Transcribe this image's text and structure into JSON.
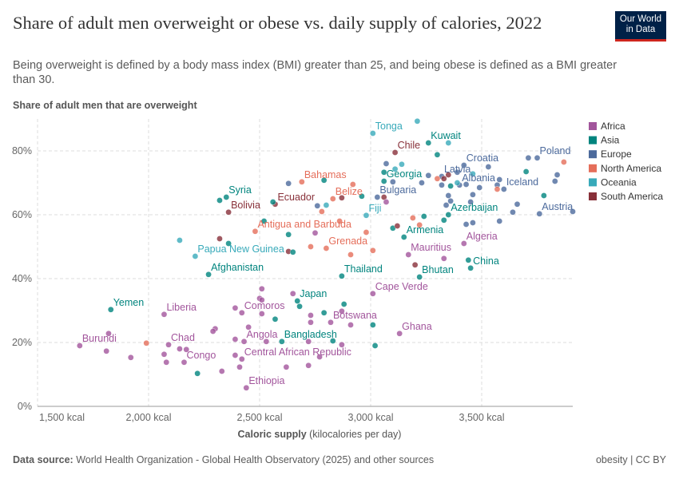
{
  "header": {
    "title": "Share of adult men overweight or obese vs. daily supply of calories, 2022",
    "subtitle": "Being overweight is defined by a body mass index (BMI) greater than 25, and being obese is defined as a BMI greater than 30.",
    "logo": "Our World in Data"
  },
  "footer": {
    "source_label": "Data source:",
    "source": "World Health Organization - Global Health Observatory (2025) and other sources",
    "right": "obesity | CC BY"
  },
  "chart_data": {
    "type": "scatter",
    "title": "Share of adult men overweight or obese vs. daily supply of calories, 2022",
    "ylabel": "Share of adult men that are overweight",
    "xlabel_bold": "Caloric supply",
    "xlabel_rest": " (kilocalories per day)",
    "xlim": [
      1500,
      3910
    ],
    "ylim": [
      0,
      90
    ],
    "xticks": [
      {
        "v": 1500,
        "label": "1,500 kcal"
      },
      {
        "v": 2000,
        "label": "2,000 kcal"
      },
      {
        "v": 2500,
        "label": "2,500 kcal"
      },
      {
        "v": 3000,
        "label": "3,000 kcal"
      },
      {
        "v": 3500,
        "label": "3,500 kcal"
      }
    ],
    "yticks": [
      {
        "v": 0,
        "label": "0%"
      },
      {
        "v": 20,
        "label": "20%"
      },
      {
        "v": 40,
        "label": "40%"
      },
      {
        "v": 60,
        "label": "60%"
      },
      {
        "v": 80,
        "label": "80%"
      }
    ],
    "grid": true,
    "legend_position": "right",
    "legend": [
      {
        "name": "Africa",
        "color": "#a2559c"
      },
      {
        "name": "Asia",
        "color": "#00847e"
      },
      {
        "name": "Europe",
        "color": "#4c6a9c"
      },
      {
        "name": "North America",
        "color": "#e56e5a"
      },
      {
        "name": "Oceania",
        "color": "#38aaba"
      },
      {
        "name": "South America",
        "color": "#883039"
      }
    ],
    "points": [
      {
        "name": "Burundi",
        "region": "Africa",
        "kcal": 1690,
        "pct": 19
      },
      {
        "name": "Yemen",
        "region": "Asia",
        "kcal": 1830,
        "pct": 30.3
      },
      {
        "name": "Liberia",
        "region": "Africa",
        "kcal": 2070,
        "pct": 28.8
      },
      {
        "name": "Chad",
        "region": "Africa",
        "kcal": 2090,
        "pct": 19.3
      },
      {
        "name": "Congo",
        "region": "Africa",
        "kcal": 2160,
        "pct": 13.8
      },
      {
        "name": "Comoros",
        "region": "Africa",
        "kcal": 2420,
        "pct": 29.3
      },
      {
        "name": "Angola",
        "region": "Africa",
        "kcal": 2430,
        "pct": 20.3
      },
      {
        "name": "Central African Republic",
        "region": "Africa",
        "kcal": 2420,
        "pct": 14.8
      },
      {
        "name": "Ethiopia",
        "region": "Africa",
        "kcal": 2440,
        "pct": 5.8
      },
      {
        "name": "Bangladesh",
        "region": "Asia",
        "kcal": 2600,
        "pct": 20.3
      },
      {
        "name": "Japan",
        "region": "Asia",
        "kcal": 2670,
        "pct": 33
      },
      {
        "name": "Botswana",
        "region": "Africa",
        "kcal": 2820,
        "pct": 26.3
      },
      {
        "name": "Ghana",
        "region": "Africa",
        "kcal": 3130,
        "pct": 22.8
      },
      {
        "name": "Cape Verde",
        "region": "Africa",
        "kcal": 3010,
        "pct": 35.3
      },
      {
        "name": "Thailand",
        "region": "Asia",
        "kcal": 2870,
        "pct": 40.8
      },
      {
        "name": "Bhutan",
        "region": "Asia",
        "kcal": 3220,
        "pct": 40.5
      },
      {
        "name": "China",
        "region": "Asia",
        "kcal": 3450,
        "pct": 43.3
      },
      {
        "name": "Mauritius",
        "region": "Africa",
        "kcal": 3170,
        "pct": 47.5
      },
      {
        "name": "Algeria",
        "region": "Africa",
        "kcal": 3420,
        "pct": 51
      },
      {
        "name": "Armenia",
        "region": "Asia",
        "kcal": 3150,
        "pct": 53
      },
      {
        "name": "Azerbaijan",
        "region": "Asia",
        "kcal": 3350,
        "pct": 60
      },
      {
        "name": "Austria",
        "region": "Europe",
        "kcal": 3760,
        "pct": 60.3
      },
      {
        "name": "Iceland",
        "region": "Europe",
        "kcal": 3600,
        "pct": 68
      },
      {
        "name": "Albania",
        "region": "Europe",
        "kcal": 3400,
        "pct": 69.3
      },
      {
        "name": "Latvia",
        "region": "Europe",
        "kcal": 3320,
        "pct": 72
      },
      {
        "name": "Croatia",
        "region": "Europe",
        "kcal": 3420,
        "pct": 75.5
      },
      {
        "name": "Poland",
        "region": "Europe",
        "kcal": 3750,
        "pct": 77.8
      },
      {
        "name": "Kuwait",
        "region": "Asia",
        "kcal": 3260,
        "pct": 82.5
      },
      {
        "name": "Tonga",
        "region": "Oceania",
        "kcal": 3010,
        "pct": 85.5
      },
      {
        "name": "Chile",
        "region": "South America",
        "kcal": 3110,
        "pct": 79.5
      },
      {
        "name": "Georgia",
        "region": "Asia",
        "kcal": 3060,
        "pct": 70.5
      },
      {
        "name": "Bulgaria",
        "region": "Europe",
        "kcal": 3030,
        "pct": 65.5
      },
      {
        "name": "Fiji",
        "region": "Oceania",
        "kcal": 2980,
        "pct": 59.8
      },
      {
        "name": "Belize",
        "region": "North America",
        "kcal": 2830,
        "pct": 65
      },
      {
        "name": "Bahamas",
        "region": "North America",
        "kcal": 2690,
        "pct": 70.3
      },
      {
        "name": "Ecuador",
        "region": "South America",
        "kcal": 2570,
        "pct": 63.3
      },
      {
        "name": "Bolivia",
        "region": "South America",
        "kcal": 2360,
        "pct": 60.8
      },
      {
        "name": "Syria",
        "region": "Asia",
        "kcal": 2350,
        "pct": 65.5
      },
      {
        "name": "Antigua and Barbuda",
        "region": "North America",
        "kcal": 2480,
        "pct": 54.8
      },
      {
        "name": "Grenada",
        "region": "North America",
        "kcal": 2800,
        "pct": 49.5
      },
      {
        "name": "Papua New Guinea",
        "region": "Oceania",
        "kcal": 2210,
        "pct": 47
      },
      {
        "name": "Afghanistan",
        "region": "Asia",
        "kcal": 2270,
        "pct": 41.3
      },
      {
        "name": "",
        "region": "Oceania",
        "kcal": 3210,
        "pct": 89.3
      },
      {
        "name": "",
        "region": "Oceania",
        "kcal": 3350,
        "pct": 82.5
      },
      {
        "name": "",
        "region": "Asia",
        "kcal": 3300,
        "pct": 78.8
      },
      {
        "name": "",
        "region": "Europe",
        "kcal": 3070,
        "pct": 76
      },
      {
        "name": "",
        "region": "Oceania",
        "kcal": 3140,
        "pct": 75.8
      },
      {
        "name": "",
        "region": "Oceania",
        "kcal": 3110,
        "pct": 74.3
      },
      {
        "name": "",
        "region": "Asia",
        "kcal": 3060,
        "pct": 73.3
      },
      {
        "name": "",
        "region": "Europe",
        "kcal": 3100,
        "pct": 70.3
      },
      {
        "name": "",
        "region": "Europe",
        "kcal": 3230,
        "pct": 70
      },
      {
        "name": "",
        "region": "Europe",
        "kcal": 3260,
        "pct": 72.3
      },
      {
        "name": "",
        "region": "South America",
        "kcal": 3330,
        "pct": 71.3
      },
      {
        "name": "",
        "region": "South America",
        "kcal": 3350,
        "pct": 72.5
      },
      {
        "name": "",
        "region": "Europe",
        "kcal": 3390,
        "pct": 73.3
      },
      {
        "name": "",
        "region": "North America",
        "kcal": 3300,
        "pct": 71.3
      },
      {
        "name": "",
        "region": "Europe",
        "kcal": 3320,
        "pct": 69.3
      },
      {
        "name": "",
        "region": "Asia",
        "kcal": 3360,
        "pct": 69
      },
      {
        "name": "",
        "region": "Oceania",
        "kcal": 3390,
        "pct": 70
      },
      {
        "name": "",
        "region": "Europe",
        "kcal": 3430,
        "pct": 69.5
      },
      {
        "name": "",
        "region": "Europe",
        "kcal": 3530,
        "pct": 75
      },
      {
        "name": "",
        "region": "Oceania",
        "kcal": 3460,
        "pct": 72.8
      },
      {
        "name": "",
        "region": "Europe",
        "kcal": 3490,
        "pct": 68.5
      },
      {
        "name": "",
        "region": "Europe",
        "kcal": 3570,
        "pct": 69.3
      },
      {
        "name": "",
        "region": "North America",
        "kcal": 3570,
        "pct": 68
      },
      {
        "name": "",
        "region": "Europe",
        "kcal": 3580,
        "pct": 71
      },
      {
        "name": "",
        "region": "Asia",
        "kcal": 3700,
        "pct": 73.5
      },
      {
        "name": "",
        "region": "Europe",
        "kcal": 3710,
        "pct": 77.8
      },
      {
        "name": "",
        "region": "North America",
        "kcal": 3870,
        "pct": 76.5
      },
      {
        "name": "",
        "region": "Europe",
        "kcal": 3840,
        "pct": 72.5
      },
      {
        "name": "",
        "region": "Europe",
        "kcal": 3830,
        "pct": 70.5
      },
      {
        "name": "",
        "region": "Asia",
        "kcal": 3780,
        "pct": 66
      },
      {
        "name": "",
        "region": "Europe",
        "kcal": 3660,
        "pct": 63.3
      },
      {
        "name": "",
        "region": "Europe",
        "kcal": 3640,
        "pct": 60.8
      },
      {
        "name": "",
        "region": "Europe",
        "kcal": 3910,
        "pct": 61
      },
      {
        "name": "",
        "region": "Europe",
        "kcal": 3580,
        "pct": 58
      },
      {
        "name": "",
        "region": "Europe",
        "kcal": 3460,
        "pct": 57.5
      },
      {
        "name": "",
        "region": "Europe",
        "kcal": 3430,
        "pct": 57
      },
      {
        "name": "",
        "region": "Europe",
        "kcal": 3460,
        "pct": 66.3
      },
      {
        "name": "",
        "region": "Europe",
        "kcal": 3450,
        "pct": 64
      },
      {
        "name": "",
        "region": "Europe",
        "kcal": 3350,
        "pct": 66
      },
      {
        "name": "",
        "region": "Europe",
        "kcal": 3360,
        "pct": 64.3
      },
      {
        "name": "",
        "region": "Europe",
        "kcal": 3340,
        "pct": 63
      },
      {
        "name": "",
        "region": "Asia",
        "kcal": 3330,
        "pct": 58.3
      },
      {
        "name": "",
        "region": "Asia",
        "kcal": 3240,
        "pct": 59.5
      },
      {
        "name": "",
        "region": "North America",
        "kcal": 3190,
        "pct": 59
      },
      {
        "name": "",
        "region": "North America",
        "kcal": 3220,
        "pct": 56.8
      },
      {
        "name": "",
        "region": "Asia",
        "kcal": 3100,
        "pct": 55.8
      },
      {
        "name": "",
        "region": "South America",
        "kcal": 3120,
        "pct": 56.5
      },
      {
        "name": "",
        "region": "South America",
        "kcal": 3060,
        "pct": 65.5
      },
      {
        "name": "",
        "region": "Africa",
        "kcal": 3070,
        "pct": 64
      },
      {
        "name": "",
        "region": "Asia",
        "kcal": 2960,
        "pct": 65.8
      },
      {
        "name": "",
        "region": "North America",
        "kcal": 2920,
        "pct": 69.5
      },
      {
        "name": "",
        "region": "South America",
        "kcal": 2870,
        "pct": 65.3
      },
      {
        "name": "",
        "region": "Oceania",
        "kcal": 2800,
        "pct": 63
      },
      {
        "name": "",
        "region": "Europe",
        "kcal": 2760,
        "pct": 62.8
      },
      {
        "name": "",
        "region": "North America",
        "kcal": 2780,
        "pct": 61
      },
      {
        "name": "",
        "region": "Asia",
        "kcal": 2790,
        "pct": 70.8
      },
      {
        "name": "",
        "region": "North America",
        "kcal": 2860,
        "pct": 58
      },
      {
        "name": "",
        "region": "Africa",
        "kcal": 2750,
        "pct": 54.3
      },
      {
        "name": "",
        "region": "North America",
        "kcal": 2980,
        "pct": 54.5
      },
      {
        "name": "",
        "region": "North America",
        "kcal": 2730,
        "pct": 50
      },
      {
        "name": "",
        "region": "North America",
        "kcal": 2910,
        "pct": 47.5
      },
      {
        "name": "",
        "region": "North America",
        "kcal": 3010,
        "pct": 48.8
      },
      {
        "name": "",
        "region": "Africa",
        "kcal": 3330,
        "pct": 46.3
      },
      {
        "name": "",
        "region": "South America",
        "kcal": 3200,
        "pct": 44.3
      },
      {
        "name": "",
        "region": "Asia",
        "kcal": 3440,
        "pct": 45.8
      },
      {
        "name": "",
        "region": "Europe",
        "kcal": 2630,
        "pct": 69.8
      },
      {
        "name": "",
        "region": "Asia",
        "kcal": 2320,
        "pct": 64.5
      },
      {
        "name": "",
        "region": "Asia",
        "kcal": 2560,
        "pct": 64
      },
      {
        "name": "",
        "region": "Asia",
        "kcal": 2520,
        "pct": 58
      },
      {
        "name": "",
        "region": "Asia",
        "kcal": 2630,
        "pct": 53.8
      },
      {
        "name": "",
        "region": "South America",
        "kcal": 2320,
        "pct": 52.5
      },
      {
        "name": "",
        "region": "Asia",
        "kcal": 2360,
        "pct": 51
      },
      {
        "name": "",
        "region": "Oceania",
        "kcal": 2140,
        "pct": 52
      },
      {
        "name": "",
        "region": "South America",
        "kcal": 2630,
        "pct": 48.5
      },
      {
        "name": "",
        "region": "Asia",
        "kcal": 2650,
        "pct": 48.3
      },
      {
        "name": "",
        "region": "Africa",
        "kcal": 2510,
        "pct": 36.8
      },
      {
        "name": "",
        "region": "Africa",
        "kcal": 2500,
        "pct": 33.8
      },
      {
        "name": "",
        "region": "Africa",
        "kcal": 2510,
        "pct": 33.3
      },
      {
        "name": "",
        "region": "Africa",
        "kcal": 2650,
        "pct": 35.3
      },
      {
        "name": "",
        "region": "Asia",
        "kcal": 2680,
        "pct": 31.3
      },
      {
        "name": "",
        "region": "Africa",
        "kcal": 2390,
        "pct": 30.8
      },
      {
        "name": "",
        "region": "Africa",
        "kcal": 2510,
        "pct": 29
      },
      {
        "name": "",
        "region": "Asia",
        "kcal": 2570,
        "pct": 27.3
      },
      {
        "name": "",
        "region": "Africa",
        "kcal": 1820,
        "pct": 22.8
      },
      {
        "name": "",
        "region": "Africa",
        "kcal": 2300,
        "pct": 24.3
      },
      {
        "name": "",
        "region": "Africa",
        "kcal": 2290,
        "pct": 23.5
      },
      {
        "name": "",
        "region": "Africa",
        "kcal": 2450,
        "pct": 24.8
      },
      {
        "name": "",
        "region": "Africa",
        "kcal": 2390,
        "pct": 21
      },
      {
        "name": "",
        "region": "Africa",
        "kcal": 2530,
        "pct": 20.3
      },
      {
        "name": "",
        "region": "North America",
        "kcal": 1990,
        "pct": 19.8
      },
      {
        "name": "",
        "region": "Africa",
        "kcal": 1810,
        "pct": 17.3
      },
      {
        "name": "",
        "region": "Africa",
        "kcal": 1920,
        "pct": 15.3
      },
      {
        "name": "",
        "region": "Africa",
        "kcal": 2140,
        "pct": 18
      },
      {
        "name": "",
        "region": "Africa",
        "kcal": 2170,
        "pct": 17.8
      },
      {
        "name": "",
        "region": "Africa",
        "kcal": 2070,
        "pct": 16.3
      },
      {
        "name": "",
        "region": "Africa",
        "kcal": 2080,
        "pct": 13.8
      },
      {
        "name": "",
        "region": "Africa",
        "kcal": 2390,
        "pct": 16
      },
      {
        "name": "",
        "region": "Africa",
        "kcal": 2410,
        "pct": 12.3
      },
      {
        "name": "",
        "region": "Africa",
        "kcal": 2330,
        "pct": 11
      },
      {
        "name": "",
        "region": "Asia",
        "kcal": 2220,
        "pct": 10.3
      },
      {
        "name": "",
        "region": "Africa",
        "kcal": 2620,
        "pct": 12.3
      },
      {
        "name": "",
        "region": "Asia",
        "kcal": 2880,
        "pct": 32
      },
      {
        "name": "",
        "region": "Asia",
        "kcal": 2790,
        "pct": 29.3
      },
      {
        "name": "",
        "region": "Africa",
        "kcal": 2730,
        "pct": 28.5
      },
      {
        "name": "",
        "region": "Africa",
        "kcal": 2730,
        "pct": 26.3
      },
      {
        "name": "",
        "region": "Africa",
        "kcal": 2870,
        "pct": 29.8
      },
      {
        "name": "",
        "region": "Africa",
        "kcal": 2910,
        "pct": 25.5
      },
      {
        "name": "",
        "region": "Asia",
        "kcal": 3010,
        "pct": 25.5
      },
      {
        "name": "",
        "region": "Africa",
        "kcal": 2720,
        "pct": 20.3
      },
      {
        "name": "",
        "region": "Africa",
        "kcal": 2870,
        "pct": 19.3
      },
      {
        "name": "",
        "region": "Asia",
        "kcal": 3020,
        "pct": 19
      },
      {
        "name": "",
        "region": "Africa",
        "kcal": 2770,
        "pct": 15.5
      },
      {
        "name": "",
        "region": "Africa",
        "kcal": 2720,
        "pct": 12.8
      },
      {
        "name": "",
        "region": "Asia",
        "kcal": 2830,
        "pct": 20.5
      }
    ]
  }
}
